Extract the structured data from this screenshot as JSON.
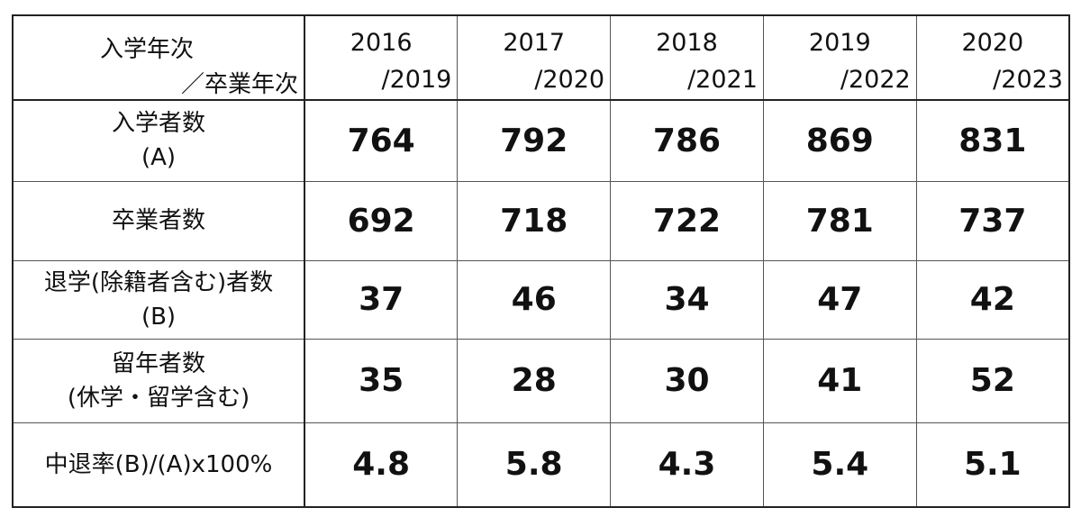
{
  "header": {
    "label_line1": "入学年次",
    "label_line2": "／卒業年次",
    "years": [
      {
        "entry": "2016",
        "grad": "/2019"
      },
      {
        "entry": "2017",
        "grad": "/2020"
      },
      {
        "entry": "2018",
        "grad": "/2021"
      },
      {
        "entry": "2019",
        "grad": "/2022"
      },
      {
        "entry": "2020",
        "grad": "/2023"
      }
    ]
  },
  "rows": [
    {
      "label": [
        "入学者数",
        "(A)"
      ],
      "values": [
        "764",
        "792",
        "786",
        "869",
        "831"
      ]
    },
    {
      "label": [
        "卒業者数"
      ],
      "values": [
        "692",
        "718",
        "722",
        "781",
        "737"
      ]
    },
    {
      "label": [
        "退学(除籍者含む)者数",
        "(B)"
      ],
      "values": [
        "37",
        "46",
        "34",
        "47",
        "42"
      ]
    },
    {
      "label": [
        "留年者数",
        "(休学・留学含む)"
      ],
      "values": [
        "35",
        "28",
        "30",
        "41",
        "52"
      ]
    },
    {
      "label": [
        "中退率(B)/(A)x100%"
      ],
      "values": [
        "4.8",
        "5.8",
        "4.3",
        "5.4",
        "5.1"
      ]
    }
  ]
}
